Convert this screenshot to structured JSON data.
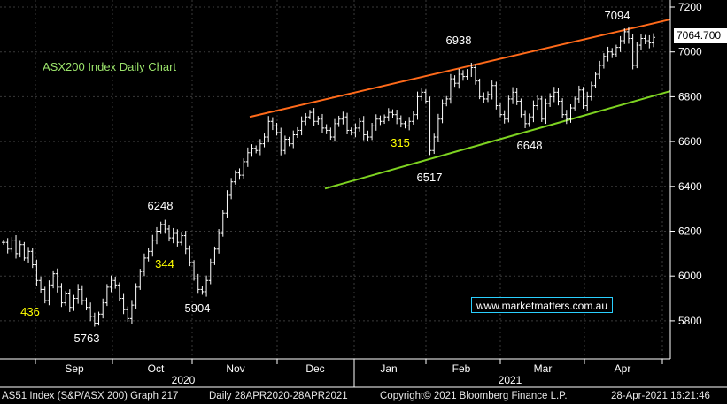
{
  "chart_data": {
    "type": "ohlc",
    "title": "ASX200 Index Daily Chart",
    "ylim": [
      5700,
      7220
    ],
    "y_ticks": [
      5800,
      6000,
      6200,
      6400,
      6600,
      6800,
      7000,
      7200
    ],
    "month_labels": [
      "Sep",
      "Oct",
      "Nov",
      "Dec",
      "Jan",
      "Feb",
      "Mar",
      "Apr"
    ],
    "year_labels": [
      "2020",
      "2021"
    ],
    "last_price": "7064.700",
    "annotations": [
      {
        "text": "7094",
        "color": "#ffffff"
      },
      {
        "text": "6938",
        "color": "#ffffff"
      },
      {
        "text": "6248",
        "color": "#ffffff"
      },
      {
        "text": "6517",
        "color": "#ffffff"
      },
      {
        "text": "6648",
        "color": "#ffffff"
      },
      {
        "text": "5904",
        "color": "#ffffff"
      },
      {
        "text": "5763",
        "color": "#ffffff"
      },
      {
        "text": "315",
        "color": "#ffff00"
      },
      {
        "text": "344",
        "color": "#ffff00"
      },
      {
        "text": "436",
        "color": "#ffff00"
      }
    ],
    "trend_lines": [
      {
        "name": "upper channel",
        "color": "#ff6a1a",
        "from": 6710,
        "to": 7145
      },
      {
        "name": "lower channel",
        "color": "#7ed321",
        "from": 6390,
        "to": 6825
      }
    ],
    "closes": [
      6150,
      6120,
      6160,
      6100,
      6140,
      6080,
      6110,
      6050,
      5980,
      5940,
      5890,
      5960,
      6010,
      5950,
      5880,
      5920,
      5860,
      5900,
      5940,
      5890,
      5860,
      5820,
      5790,
      5830,
      5880,
      5950,
      5980,
      5960,
      5900,
      5850,
      5810,
      5870,
      5950,
      6020,
      6080,
      6110,
      6160,
      6200,
      6230,
      6210,
      6170,
      6190,
      6150,
      6180,
      6120,
      6060,
      5990,
      5940,
      5930,
      5980,
      6060,
      6120,
      6190,
      6280,
      6360,
      6420,
      6460,
      6450,
      6510,
      6550,
      6570,
      6560,
      6590,
      6620,
      6690,
      6670,
      6640,
      6560,
      6610,
      6590,
      6630,
      6650,
      6690,
      6710,
      6730,
      6690,
      6700,
      6660,
      6650,
      6620,
      6680,
      6700,
      6710,
      6650,
      6640,
      6660,
      6690,
      6630,
      6620,
      6670,
      6700,
      6690,
      6710,
      6730,
      6720,
      6700,
      6680,
      6670,
      6690,
      6720,
      6800,
      6820,
      6780,
      6560,
      6620,
      6700,
      6770,
      6790,
      6880,
      6860,
      6900,
      6890,
      6910,
      6930,
      6870,
      6800,
      6790,
      6810,
      6850,
      6760,
      6720,
      6700,
      6790,
      6820,
      6780,
      6720,
      6680,
      6710,
      6760,
      6790,
      6700,
      6770,
      6800,
      6820,
      6780,
      6720,
      6700,
      6750,
      6790,
      6830,
      6760,
      6800,
      6850,
      6900,
      6940,
      6980,
      7000,
      6990,
      7020,
      7050,
      7090,
      7060,
      6940,
      7030,
      7060,
      7050,
      7040,
      7064.7
    ]
  },
  "footer": {
    "left": "AS51 Index (S&P/ASX 200) Graph 217",
    "range": "Daily 28APR2020-28APR2021",
    "copyright": "Copyright© 2021 Bloomberg Finance L.P.",
    "timestamp": "28-Apr-2021 16:21:46"
  },
  "watermark": "www.marketmatters.com.au",
  "colors": {
    "bars": "#ffffff",
    "grid": "#3a3a3a",
    "background": "#000000",
    "highlight": "#ffff00"
  }
}
